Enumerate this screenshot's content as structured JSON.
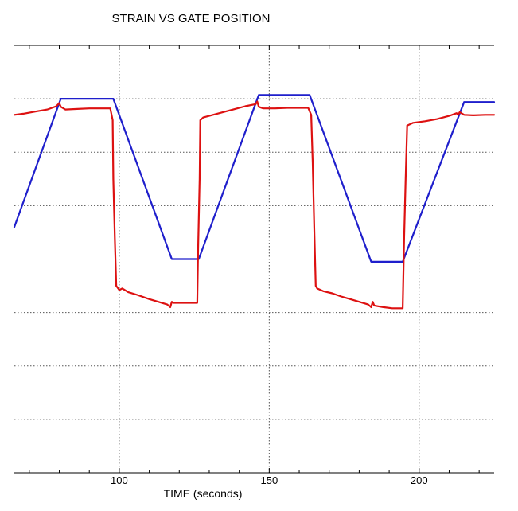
{
  "chart_data": {
    "type": "line",
    "title": "STRAIN VS GATE POSITION",
    "xlabel": "TIME (seconds)",
    "ylabel": "",
    "xlim": [
      65,
      225
    ],
    "ylim": [
      0,
      8
    ],
    "x_ticks": [
      100,
      150,
      200
    ],
    "y_grid": [
      1,
      2,
      3,
      4,
      5,
      6,
      7
    ],
    "grid": true,
    "legend": "none",
    "series": [
      {
        "color": "#1f1fcc",
        "x": [
          65,
          80.5,
          98,
          117.5,
          126.5,
          146.5,
          163.5,
          184,
          194.5,
          215,
          225
        ],
        "y": [
          4.6,
          7.0,
          7.0,
          4.0,
          4.0,
          7.07,
          7.07,
          3.95,
          3.95,
          6.94,
          6.94
        ]
      },
      {
        "color": "#dd1111",
        "x": [
          65,
          68,
          72,
          76,
          79,
          80,
          80.5,
          82,
          86,
          90,
          94,
          97,
          97.8,
          98,
          98.5,
          99,
          100,
          101,
          103,
          106,
          110,
          113,
          116,
          117,
          117.5,
          118,
          120,
          123,
          125,
          126,
          126.3,
          126.8,
          127,
          128,
          130,
          134,
          138,
          142,
          145.5,
          146,
          146.5,
          148,
          152,
          156,
          160,
          163,
          164,
          164.5,
          165,
          165.5,
          166,
          168,
          171,
          174,
          177,
          180,
          183,
          184,
          184.5,
          185,
          188,
          191,
          194,
          194.5,
          195,
          195.5,
          196,
          198,
          202,
          206,
          210,
          212.5,
          213,
          213.5,
          215,
          218,
          222,
          225
        ],
        "y": [
          6.7,
          6.72,
          6.76,
          6.8,
          6.86,
          6.92,
          6.85,
          6.8,
          6.81,
          6.82,
          6.82,
          6.82,
          6.6,
          5.5,
          4.4,
          3.5,
          3.42,
          3.45,
          3.38,
          3.33,
          3.25,
          3.2,
          3.15,
          3.1,
          3.2,
          3.18,
          3.18,
          3.18,
          3.18,
          3.18,
          4.2,
          5.5,
          6.6,
          6.65,
          6.68,
          6.74,
          6.8,
          6.86,
          6.9,
          6.95,
          6.85,
          6.82,
          6.82,
          6.83,
          6.83,
          6.83,
          6.7,
          5.8,
          4.6,
          3.5,
          3.45,
          3.4,
          3.36,
          3.3,
          3.25,
          3.2,
          3.15,
          3.1,
          3.2,
          3.13,
          3.1,
          3.08,
          3.08,
          3.08,
          4.4,
          5.5,
          6.5,
          6.55,
          6.58,
          6.62,
          6.68,
          6.73,
          6.7,
          6.75,
          6.7,
          6.69,
          6.7,
          6.7
        ]
      }
    ]
  }
}
